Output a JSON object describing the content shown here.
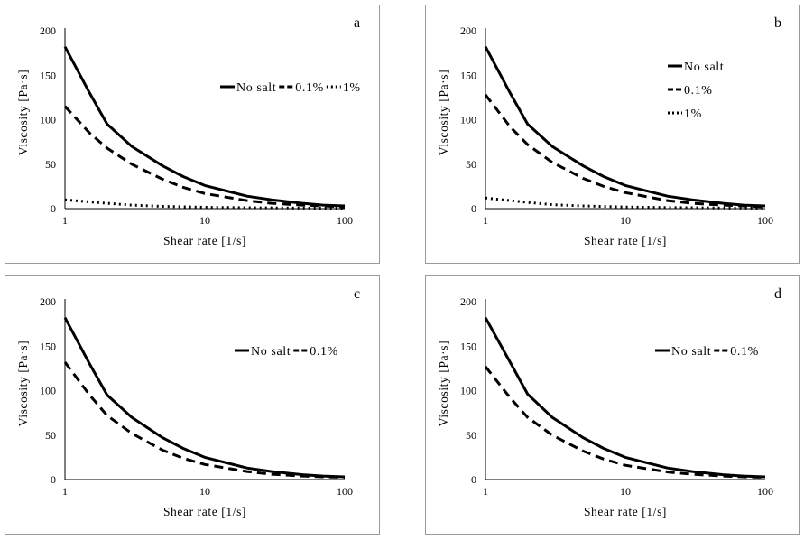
{
  "chart_data": [
    {
      "type": "line",
      "panel_label": "a",
      "xlabel": "Shear rate [1/s]",
      "ylabel": "Viscosity [Pa·s]",
      "x_scale": "log",
      "xlim": [
        1,
        100
      ],
      "ylim": [
        0,
        200
      ],
      "x_ticks": [
        "1",
        "10",
        "100"
      ],
      "y_ticks": [
        "0",
        "50",
        "100",
        "150",
        "200"
      ],
      "grid": false,
      "legend": "right, horizontal",
      "series": [
        {
          "name": "No salt",
          "style": "solid",
          "x": [
            1,
            1.5,
            2,
            3,
            5,
            7,
            10,
            20,
            30,
            50,
            70,
            100
          ],
          "y": [
            182,
            130,
            95,
            70,
            48,
            36,
            26,
            14,
            10,
            6,
            4,
            3
          ]
        },
        {
          "name": "0.1%",
          "style": "dashed",
          "x": [
            1,
            1.5,
            2,
            3,
            5,
            7,
            10,
            20,
            30,
            50,
            70,
            100
          ],
          "y": [
            115,
            85,
            68,
            50,
            33,
            24,
            17,
            9,
            6,
            4,
            3,
            2
          ]
        },
        {
          "name": "1%",
          "style": "dotted",
          "x": [
            1,
            2,
            3,
            5,
            10,
            20,
            50,
            100
          ],
          "y": [
            10,
            6,
            4,
            2.5,
            1.5,
            1,
            0.6,
            0.4
          ]
        }
      ]
    },
    {
      "type": "line",
      "panel_label": "b",
      "xlabel": "Shear rate [1/s]",
      "ylabel": "Viscosity [Pa·s]",
      "x_scale": "log",
      "xlim": [
        1,
        100
      ],
      "ylim": [
        0,
        200
      ],
      "x_ticks": [
        "1",
        "10",
        "100"
      ],
      "y_ticks": [
        "0",
        "50",
        "100",
        "150",
        "200"
      ],
      "grid": false,
      "legend": "right, vertical",
      "series": [
        {
          "name": "No salt",
          "style": "solid",
          "x": [
            1,
            1.5,
            2,
            3,
            5,
            7,
            10,
            20,
            30,
            50,
            70,
            100
          ],
          "y": [
            182,
            130,
            95,
            70,
            48,
            36,
            26,
            14,
            10,
            6,
            4,
            3
          ]
        },
        {
          "name": "0.1%",
          "style": "dashed",
          "x": [
            1,
            1.5,
            2,
            3,
            5,
            7,
            10,
            20,
            30,
            50,
            70,
            100
          ],
          "y": [
            128,
            92,
            72,
            52,
            34,
            25,
            18,
            9,
            6,
            4,
            3,
            2
          ]
        },
        {
          "name": "1%",
          "style": "dotted",
          "x": [
            1,
            2,
            3,
            5,
            10,
            20,
            50,
            100
          ],
          "y": [
            12,
            7,
            4.5,
            3,
            1.8,
            1.2,
            0.7,
            0.5
          ]
        }
      ]
    },
    {
      "type": "line",
      "panel_label": "c",
      "xlabel": "Shear rate [1/s]",
      "ylabel": "Viscosity [Pa·s]",
      "x_scale": "log",
      "xlim": [
        1,
        100
      ],
      "ylim": [
        0,
        200
      ],
      "x_ticks": [
        "1",
        "10",
        "100"
      ],
      "y_ticks": [
        "0",
        "50",
        "100",
        "150",
        "200"
      ],
      "grid": false,
      "legend": "right, horizontal",
      "series": [
        {
          "name": "No salt",
          "style": "solid",
          "x": [
            1,
            1.5,
            2,
            3,
            5,
            7,
            10,
            20,
            30,
            50,
            70,
            100
          ],
          "y": [
            182,
            130,
            95,
            70,
            47,
            35,
            25,
            13,
            9,
            5.5,
            4,
            3
          ]
        },
        {
          "name": "0.1%",
          "style": "dashed",
          "x": [
            1,
            1.5,
            2,
            3,
            5,
            7,
            10,
            20,
            30,
            50,
            70,
            100
          ],
          "y": [
            132,
            95,
            72,
            52,
            33,
            24,
            17,
            9,
            6,
            4,
            3,
            2.5
          ]
        }
      ]
    },
    {
      "type": "line",
      "panel_label": "d",
      "xlabel": "Shear rate [1/s]",
      "ylabel": "Viscosity [Pa·s]",
      "x_scale": "log",
      "xlim": [
        1,
        100
      ],
      "ylim": [
        0,
        200
      ],
      "x_ticks": [
        "1",
        "10",
        "100"
      ],
      "y_ticks": [
        "0",
        "50",
        "100",
        "150",
        "200"
      ],
      "grid": false,
      "legend": "right, horizontal",
      "series": [
        {
          "name": "No salt",
          "style": "solid",
          "x": [
            1,
            1.5,
            2,
            3,
            5,
            7,
            10,
            20,
            30,
            50,
            70,
            100
          ],
          "y": [
            182,
            132,
            96,
            70,
            47,
            35,
            25,
            13,
            9,
            5.5,
            4,
            3
          ]
        },
        {
          "name": "0.1%",
          "style": "dashed",
          "x": [
            1,
            1.5,
            2,
            3,
            5,
            7,
            10,
            20,
            30,
            50,
            70,
            100
          ],
          "y": [
            127,
            92,
            70,
            50,
            32,
            23,
            16,
            8.5,
            6,
            4,
            3,
            2.5
          ]
        }
      ]
    }
  ]
}
